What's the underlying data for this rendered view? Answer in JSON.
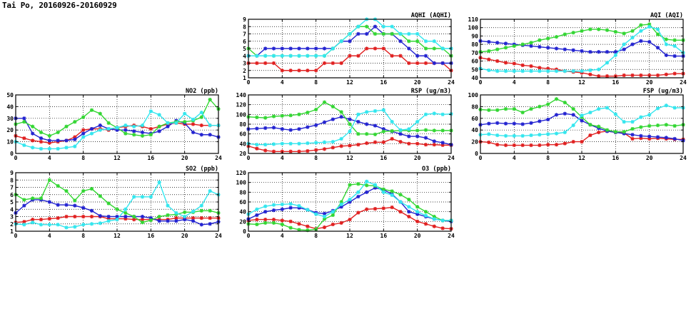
{
  "page_title": "Tai Po, 20160926-20160929",
  "colors": {
    "red": "#e02020",
    "blue": "#2323d0",
    "green": "#33d633",
    "cyan": "#33e6ee"
  },
  "chart_data": [
    {
      "id": "aqhi",
      "type": "line",
      "title": "AQHI (AQHI)",
      "xlim": [
        0,
        24
      ],
      "xticks": [
        0,
        4,
        8,
        12,
        16,
        20,
        24
      ],
      "ylim": [
        1,
        9
      ],
      "yticks": [
        1,
        2,
        3,
        4,
        5,
        6,
        7,
        8,
        9
      ],
      "grid": true,
      "x": [
        0,
        1,
        2,
        3,
        4,
        5,
        6,
        7,
        8,
        9,
        10,
        11,
        12,
        13,
        14,
        15,
        16,
        17,
        18,
        19,
        20,
        21,
        22,
        23,
        24
      ],
      "series": [
        {
          "color": "red",
          "values": [
            3,
            3,
            3,
            3,
            2,
            2,
            2,
            2,
            2,
            3,
            3,
            3,
            4,
            4,
            5,
            5,
            5,
            4,
            4,
            3,
            3,
            3,
            3,
            3,
            2
          ]
        },
        {
          "color": "blue",
          "values": [
            4,
            4,
            5,
            5,
            5,
            5,
            5,
            5,
            5,
            5,
            5,
            6,
            6,
            7,
            7,
            8,
            7,
            7,
            6,
            5,
            4,
            4,
            3,
            3,
            3
          ]
        },
        {
          "color": "green",
          "values": [
            5,
            4,
            4,
            4,
            4,
            4,
            4,
            4,
            4,
            4,
            5,
            6,
            7,
            8,
            8,
            7,
            7,
            7,
            7,
            6,
            6,
            5,
            5,
            5,
            4
          ]
        },
        {
          "color": "cyan",
          "values": [
            4,
            4,
            4,
            4,
            4,
            4,
            4,
            4,
            4,
            4,
            5,
            6,
            7,
            8,
            9,
            9,
            8,
            8,
            7,
            7,
            7,
            6,
            6,
            5,
            5
          ]
        }
      ]
    },
    {
      "id": "aqi",
      "type": "line",
      "title": "AQI (AQI)",
      "xlim": [
        0,
        24
      ],
      "xticks": [
        0,
        4,
        8,
        12,
        16,
        20,
        24
      ],
      "ylim": [
        40,
        110
      ],
      "yticks": [
        40,
        50,
        60,
        70,
        80,
        90,
        100,
        110
      ],
      "grid": true,
      "x": [
        0,
        1,
        2,
        3,
        4,
        5,
        6,
        7,
        8,
        9,
        10,
        11,
        12,
        13,
        14,
        15,
        16,
        17,
        18,
        19,
        20,
        21,
        22,
        23,
        24
      ],
      "series": [
        {
          "color": "red",
          "values": [
            64,
            62,
            60,
            58,
            57,
            55,
            54,
            52,
            51,
            50,
            48,
            47,
            46,
            44,
            42,
            42,
            42,
            43,
            43,
            43,
            43,
            43,
            44,
            45,
            45
          ]
        },
        {
          "color": "blue",
          "values": [
            84,
            83,
            82,
            81,
            80,
            79,
            78,
            77,
            76,
            75,
            74,
            73,
            72,
            71,
            71,
            71,
            71,
            74,
            80,
            84,
            83,
            76,
            67,
            66,
            66
          ]
        },
        {
          "color": "green",
          "values": [
            71,
            72,
            74,
            76,
            78,
            80,
            82,
            85,
            87,
            89,
            92,
            94,
            96,
            98,
            98,
            97,
            95,
            93,
            96,
            103,
            104,
            92,
            86,
            85,
            85
          ]
        },
        {
          "color": "cyan",
          "values": [
            51,
            49,
            48,
            48,
            48,
            48,
            48,
            48,
            48,
            48,
            48,
            48,
            48,
            49,
            50,
            58,
            67,
            80,
            88,
            96,
            101,
            98,
            80,
            78,
            70
          ]
        }
      ]
    },
    {
      "id": "no2",
      "type": "line",
      "title": "NO2 (ppb)",
      "xlim": [
        0,
        24
      ],
      "xticks": [
        0,
        4,
        8,
        12,
        16,
        20,
        24
      ],
      "ylim": [
        0,
        50
      ],
      "yticks": [
        0,
        10,
        20,
        30,
        40,
        50
      ],
      "grid": true,
      "x": [
        0,
        1,
        2,
        3,
        4,
        5,
        6,
        7,
        8,
        9,
        10,
        11,
        12,
        13,
        14,
        15,
        16,
        17,
        18,
        19,
        20,
        21,
        22,
        23,
        24
      ],
      "series": [
        {
          "color": "red",
          "values": [
            15,
            13,
            11,
            10,
            9,
            10,
            11,
            14,
            20,
            21,
            21,
            20,
            22,
            23,
            24,
            23,
            21,
            23,
            25,
            26,
            25,
            25,
            24,
            24,
            24
          ]
        },
        {
          "color": "blue",
          "values": [
            30,
            30,
            17,
            13,
            11,
            11,
            11,
            12,
            17,
            21,
            24,
            21,
            20,
            20,
            19,
            18,
            17,
            19,
            23,
            28,
            26,
            18,
            16,
            16,
            14
          ]
        },
        {
          "color": "green",
          "values": [
            25,
            27,
            23,
            18,
            15,
            18,
            23,
            27,
            31,
            37,
            34,
            26,
            22,
            17,
            16,
            15,
            16,
            23,
            26,
            27,
            27,
            28,
            31,
            46,
            38
          ]
        },
        {
          "color": "cyan",
          "values": [
            10,
            7,
            5,
            4,
            4,
            4,
            5,
            6,
            14,
            17,
            20,
            21,
            22,
            24,
            23,
            24,
            36,
            33,
            26,
            26,
            34,
            29,
            35,
            24,
            24
          ]
        }
      ]
    },
    {
      "id": "rsp",
      "type": "line",
      "title": "RSP (ug/m3)",
      "xlim": [
        0,
        24
      ],
      "xticks": [
        0,
        4,
        8,
        12,
        16,
        20,
        24
      ],
      "ylim": [
        20,
        140
      ],
      "yticks": [
        20,
        40,
        60,
        80,
        100,
        120,
        140
      ],
      "grid": true,
      "x": [
        0,
        1,
        2,
        3,
        4,
        5,
        6,
        7,
        8,
        9,
        10,
        11,
        12,
        13,
        14,
        15,
        16,
        17,
        18,
        19,
        20,
        21,
        22,
        23,
        24
      ],
      "series": [
        {
          "color": "red",
          "values": [
            35,
            30,
            26,
            24,
            24,
            24,
            24,
            25,
            27,
            29,
            32,
            35,
            36,
            38,
            41,
            43,
            43,
            50,
            44,
            40,
            40,
            38,
            38,
            37,
            37
          ]
        },
        {
          "color": "blue",
          "values": [
            70,
            71,
            72,
            73,
            70,
            68,
            70,
            74,
            78,
            84,
            90,
            95,
            90,
            85,
            80,
            77,
            70,
            65,
            60,
            55,
            55,
            52,
            45,
            42,
            38
          ]
        },
        {
          "color": "green",
          "values": [
            95,
            94,
            93,
            96,
            97,
            98,
            100,
            104,
            110,
            125,
            116,
            105,
            80,
            60,
            60,
            59,
            65,
            66,
            67,
            67,
            67,
            68,
            67,
            67,
            67
          ]
        },
        {
          "color": "cyan",
          "values": [
            40,
            38,
            38,
            39,
            40,
            40,
            40,
            41,
            42,
            43,
            44,
            50,
            65,
            100,
            105,
            107,
            109,
            85,
            68,
            70,
            85,
            100,
            102,
            100,
            101
          ]
        }
      ]
    },
    {
      "id": "fsp",
      "type": "line",
      "title": "FSP (ug/m3)",
      "xlim": [
        0,
        24
      ],
      "xticks": [
        0,
        4,
        8,
        12,
        16,
        20,
        24
      ],
      "ylim": [
        0,
        100
      ],
      "yticks": [
        0,
        20,
        40,
        60,
        80,
        100
      ],
      "grid": true,
      "x": [
        0,
        1,
        2,
        3,
        4,
        5,
        6,
        7,
        8,
        9,
        10,
        11,
        12,
        13,
        14,
        15,
        16,
        17,
        18,
        19,
        20,
        21,
        22,
        23,
        24
      ],
      "series": [
        {
          "color": "red",
          "values": [
            20,
            19,
            15,
            14,
            14,
            14,
            14,
            14,
            15,
            15,
            17,
            20,
            20,
            31,
            36,
            38,
            36,
            35,
            25,
            26,
            25,
            26,
            25,
            24,
            24
          ]
        },
        {
          "color": "blue",
          "values": [
            49,
            51,
            52,
            51,
            51,
            50,
            52,
            55,
            58,
            66,
            68,
            66,
            56,
            49,
            43,
            38,
            36,
            34,
            32,
            30,
            29,
            28,
            27,
            25,
            22
          ]
        },
        {
          "color": "green",
          "values": [
            75,
            74,
            74,
            76,
            76,
            70,
            76,
            80,
            84,
            93,
            87,
            76,
            62,
            49,
            46,
            40,
            37,
            37,
            42,
            45,
            47,
            48,
            49,
            47,
            49
          ]
        },
        {
          "color": "cyan",
          "values": [
            32,
            33,
            31,
            30,
            30,
            30,
            31,
            32,
            33,
            34,
            36,
            48,
            65,
            70,
            76,
            78,
            67,
            54,
            54,
            62,
            66,
            77,
            82,
            78,
            78
          ]
        }
      ]
    },
    {
      "id": "so2",
      "type": "line",
      "title": "SO2 (ppb)",
      "xlim": [
        0,
        24
      ],
      "xticks": [
        0,
        4,
        8,
        12,
        16,
        20,
        24
      ],
      "ylim": [
        1,
        9
      ],
      "yticks": [
        1,
        2,
        3,
        4,
        5,
        6,
        7,
        8,
        9
      ],
      "grid": true,
      "x": [
        0,
        1,
        2,
        3,
        4,
        5,
        6,
        7,
        8,
        9,
        10,
        11,
        12,
        13,
        14,
        15,
        16,
        17,
        18,
        19,
        20,
        21,
        22,
        23,
        24
      ],
      "series": [
        {
          "color": "red",
          "values": [
            2.2,
            2.3,
            2.6,
            2.6,
            2.7,
            2.8,
            3.0,
            3.0,
            3.0,
            3.0,
            3.0,
            2.7,
            2.7,
            2.7,
            2.6,
            2.6,
            2.6,
            2.6,
            2.6,
            2.8,
            2.8,
            2.8,
            2.8,
            2.8,
            2.8
          ]
        },
        {
          "color": "blue",
          "values": [
            3.5,
            4.5,
            5.3,
            5.3,
            5.0,
            4.6,
            4.6,
            4.5,
            4.2,
            3.8,
            3.1,
            3.0,
            3.0,
            3.0,
            3.0,
            3.0,
            2.8,
            2.4,
            2.4,
            2.4,
            2.6,
            2.4,
            1.9,
            2.0,
            2.3
          ]
        },
        {
          "color": "green",
          "values": [
            6.0,
            5.3,
            5.5,
            5.5,
            8.0,
            7.2,
            6.5,
            5.2,
            6.5,
            6.8,
            5.8,
            4.8,
            4.0,
            3.5,
            3.0,
            2.2,
            2.5,
            3.0,
            3.2,
            3.3,
            3.6,
            3.6,
            3.8,
            3.8,
            3.5
          ]
        },
        {
          "color": "cyan",
          "values": [
            2.0,
            1.9,
            2.2,
            1.9,
            1.9,
            1.9,
            1.5,
            1.6,
            1.9,
            2.0,
            2.1,
            2.4,
            2.6,
            4.0,
            5.7,
            5.7,
            5.7,
            7.7,
            4.5,
            3.5,
            3.0,
            3.7,
            4.5,
            6.5,
            6.0
          ]
        }
      ]
    },
    {
      "id": "o3",
      "type": "line",
      "title": "O3 (ppb)",
      "xlim": [
        0,
        24
      ],
      "xticks": [
        0,
        4,
        8,
        12,
        16,
        20,
        24
      ],
      "ylim": [
        0,
        120
      ],
      "yticks": [
        0,
        20,
        40,
        60,
        80,
        100,
        120
      ],
      "grid": true,
      "x": [
        0,
        1,
        2,
        3,
        4,
        5,
        6,
        7,
        8,
        9,
        10,
        11,
        12,
        13,
        14,
        15,
        16,
        17,
        18,
        19,
        20,
        21,
        22,
        23,
        24
      ],
      "series": [
        {
          "color": "red",
          "values": [
            22,
            24,
            24,
            24,
            22,
            20,
            15,
            10,
            5,
            8,
            14,
            17,
            24,
            38,
            45,
            46,
            47,
            49,
            40,
            30,
            20,
            15,
            10,
            6,
            5
          ]
        },
        {
          "color": "blue",
          "values": [
            25,
            33,
            40,
            43,
            45,
            48,
            48,
            44,
            38,
            36,
            42,
            50,
            60,
            71,
            80,
            89,
            85,
            76,
            60,
            40,
            35,
            30,
            25,
            22,
            20
          ]
        },
        {
          "color": "green",
          "values": [
            15,
            14,
            17,
            17,
            14,
            7,
            3,
            2,
            4,
            25,
            33,
            60,
            95,
            97,
            94,
            93,
            86,
            82,
            75,
            65,
            50,
            40,
            30,
            22,
            22
          ]
        },
        {
          "color": "cyan",
          "values": [
            35,
            45,
            51,
            54,
            55,
            56,
            52,
            44,
            35,
            30,
            40,
            55,
            65,
            80,
            102,
            95,
            80,
            74,
            60,
            50,
            40,
            32,
            25,
            22,
            22
          ]
        }
      ]
    }
  ]
}
